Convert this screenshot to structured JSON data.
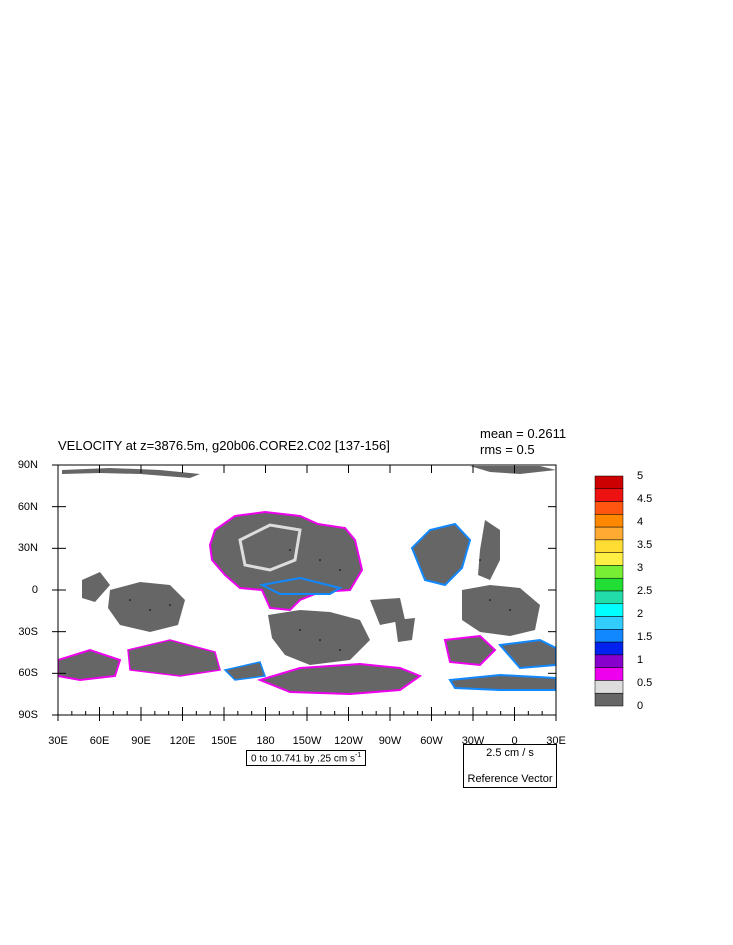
{
  "title": "VELOCITY at z=3876.5m, g20b06.CORE2.C02 [137-156]",
  "stats": {
    "mean": "mean = 0.2611",
    "rms": "rms = 0.5"
  },
  "x_ticks": [
    "30E",
    "60E",
    "90E",
    "120E",
    "150E",
    "180",
    "150W",
    "120W",
    "90W",
    "60W",
    "30W",
    "0",
    "30E"
  ],
  "y_ticks": [
    "90N",
    "60N",
    "30N",
    "0",
    "30S",
    "60S",
    "90S"
  ],
  "contour_info": {
    "text": "0 to 10.741 by .25 cm s",
    "exp": "-1"
  },
  "reference_vector": {
    "magnitude": "2.5 cm / s",
    "label": "Reference Vector"
  },
  "colorbar": {
    "labels": [
      "5",
      "4.5",
      "4",
      "3.5",
      "3",
      "2.5",
      "2",
      "1.5",
      "1",
      "0.5",
      "0"
    ],
    "colors_top_to_bottom": [
      "#cc0000",
      "#ee1111",
      "#ff5511",
      "#ff8800",
      "#ffaa33",
      "#ffdd33",
      "#ffee44",
      "#77ee33",
      "#22dd33",
      "#22ddaa",
      "#00ffff",
      "#33ccff",
      "#1188ff",
      "#0022ee",
      "#8800cc",
      "#ee00ee",
      "#dddddd",
      "#666666"
    ]
  },
  "colors": {
    "land_mask": "#ffffff",
    "low_speed": "#666666",
    "coast_band": "#dddddd",
    "magenta": "#ee00ee",
    "blue": "#1188ff",
    "cyan": "#00ffff"
  }
}
